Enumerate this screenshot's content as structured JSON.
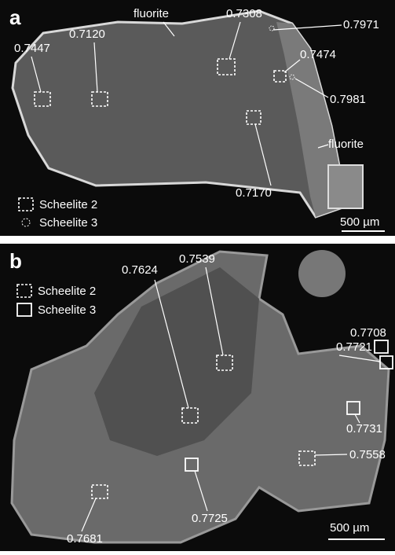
{
  "panels": [
    {
      "label": "a",
      "mineral_labels": [
        "fluorite",
        "fluorite"
      ],
      "annotations": [
        "0.7447",
        "0.7120",
        "0.7308",
        "0.7971",
        "0.7474",
        "0.7981",
        "0.7170"
      ],
      "legend": [
        "Scheelite 2",
        "Scheelite 3"
      ],
      "scale_bar": "500 µm"
    },
    {
      "label": "b",
      "annotations": [
        "0.7539",
        "0.7624",
        "0.7708",
        "0.7721",
        "0.7731",
        "0.7558",
        "0.7681",
        "0.7725"
      ],
      "legend": [
        "Scheelite 2",
        "Scheelite 3"
      ],
      "scale_bar": "500 µm"
    }
  ]
}
